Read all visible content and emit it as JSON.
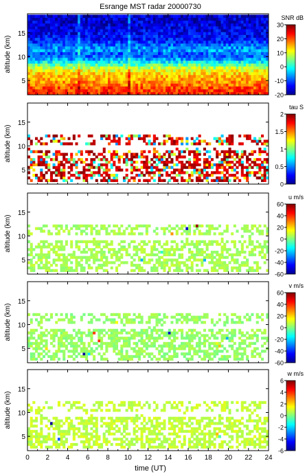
{
  "chart_data": {
    "type": "heatmap",
    "title": "Esrange MST radar 20000730",
    "xlabel": "time (UT)",
    "xlim": [
      0,
      24
    ],
    "xticks": [
      "0",
      "2",
      "4",
      "6",
      "8",
      "10",
      "12",
      "14",
      "16",
      "18",
      "20",
      "22",
      "24"
    ],
    "panels": [
      {
        "id": "snr",
        "ylabel": "altitude (km)",
        "ylim": [
          2,
          19
        ],
        "yticks": [
          "5",
          "10",
          "15"
        ],
        "colorbar_label": "SNR dB",
        "clim": [
          -20,
          30
        ],
        "cticks": [
          "-20",
          "-10",
          "0",
          "10",
          "20",
          "30"
        ],
        "coverage_km": [
          2,
          19
        ],
        "profile": [
          [
            2.5,
            22
          ],
          [
            3.5,
            20
          ],
          [
            4.5,
            17
          ],
          [
            5.5,
            15
          ],
          [
            6.5,
            13
          ],
          [
            7.5,
            9
          ],
          [
            8.5,
            2
          ],
          [
            9.5,
            -6
          ],
          [
            10.5,
            -10
          ],
          [
            11.5,
            -5
          ],
          [
            12.5,
            -9
          ],
          [
            13.5,
            -13
          ],
          [
            14.5,
            -14
          ],
          [
            16,
            -15
          ],
          [
            18,
            -16
          ]
        ]
      },
      {
        "id": "tau",
        "ylabel": "altitude (km)",
        "ylim": [
          2,
          19
        ],
        "yticks": [
          "5",
          "10",
          "15"
        ],
        "colorbar_label": "tau S",
        "clim": [
          0,
          2
        ],
        "cticks": [
          "0",
          "0.5",
          "1",
          "1.5",
          "2"
        ],
        "coverage_km": [
          2.5,
          12.5
        ],
        "typical": 1.75
      },
      {
        "id": "u",
        "ylabel": "altitude (km)",
        "ylim": [
          2,
          19
        ],
        "yticks": [
          "5",
          "10",
          "15"
        ],
        "colorbar_label": "u m/s",
        "clim": [
          -60,
          60
        ],
        "cticks": [
          "-60",
          "-40",
          "-20",
          "0",
          "20",
          "40",
          "60"
        ],
        "coverage_km": [
          2.5,
          12.5
        ],
        "typical": 5
      },
      {
        "id": "v",
        "ylabel": "altitude (km)",
        "ylim": [
          2,
          19
        ],
        "yticks": [
          "5",
          "10",
          "15"
        ],
        "colorbar_label": "v m/s",
        "clim": [
          -60,
          60
        ],
        "cticks": [
          "-60",
          "-40",
          "-20",
          "0",
          "20",
          "40",
          "60"
        ],
        "coverage_km": [
          2.5,
          12.5
        ],
        "typical": 3
      },
      {
        "id": "w",
        "ylabel": "altitude (km)",
        "ylim": [
          2,
          19
        ],
        "yticks": [
          "5",
          "10",
          "15"
        ],
        "colorbar_label": "w m/s",
        "clim": [
          -6,
          6
        ],
        "cticks": [
          "-6",
          "-4",
          "-2",
          "0",
          "2",
          "4",
          "6"
        ],
        "coverage_km": [
          2.5,
          12.5
        ],
        "typical": 0.8
      }
    ]
  }
}
